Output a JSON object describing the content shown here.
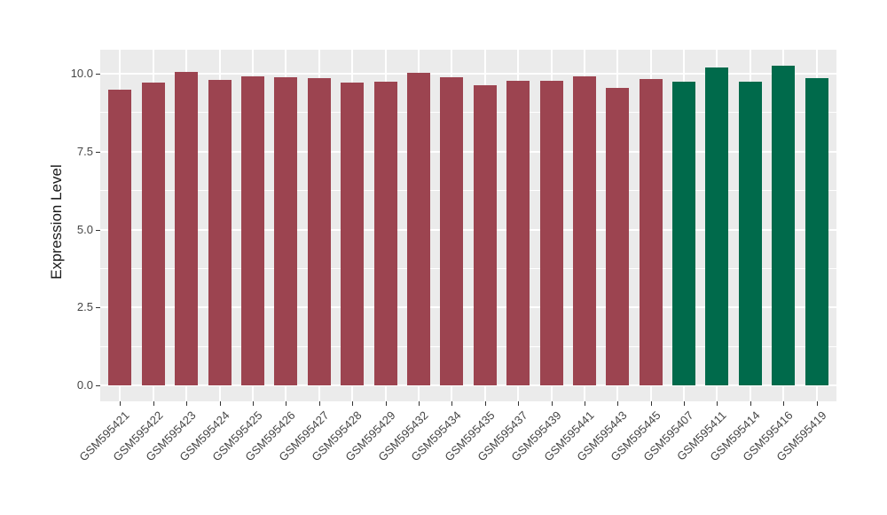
{
  "chart_data": {
    "type": "bar",
    "title": "",
    "xlabel": "",
    "ylabel": "Expression Level",
    "ytick_labels": [
      "0.0",
      "2.5",
      "5.0",
      "7.5",
      "10.0"
    ],
    "yticks": [
      0,
      2.5,
      5,
      7.5,
      10
    ],
    "yticks_minor": [
      1.25,
      3.75,
      6.25,
      8.75
    ],
    "ylim": [
      -0.51,
      10.77
    ],
    "grid": true,
    "legend_position": "none",
    "categories": [
      "GSM595421",
      "GSM595422",
      "GSM595423",
      "GSM595424",
      "GSM595425",
      "GSM595426",
      "GSM595427",
      "GSM595428",
      "GSM595429",
      "GSM595432",
      "GSM595434",
      "GSM595435",
      "GSM595437",
      "GSM595439",
      "GSM595441",
      "GSM595443",
      "GSM595445",
      "GSM595407",
      "GSM595411",
      "GSM595414",
      "GSM595416",
      "GSM595419"
    ],
    "values": [
      9.49,
      9.72,
      10.05,
      9.8,
      9.92,
      9.89,
      9.86,
      9.72,
      9.75,
      10.03,
      9.88,
      9.63,
      9.78,
      9.78,
      9.91,
      9.55,
      9.82,
      9.75,
      10.2,
      9.74,
      10.27,
      9.85
    ],
    "bars": [
      {
        "label": "GSM595421",
        "value": 9.49,
        "group": "group1"
      },
      {
        "label": "GSM595422",
        "value": 9.72,
        "group": "group1"
      },
      {
        "label": "GSM595423",
        "value": 10.05,
        "group": "group1"
      },
      {
        "label": "GSM595424",
        "value": 9.8,
        "group": "group1"
      },
      {
        "label": "GSM595425",
        "value": 9.92,
        "group": "group1"
      },
      {
        "label": "GSM595426",
        "value": 9.89,
        "group": "group1"
      },
      {
        "label": "GSM595427",
        "value": 9.86,
        "group": "group1"
      },
      {
        "label": "GSM595428",
        "value": 9.72,
        "group": "group1"
      },
      {
        "label": "GSM595429",
        "value": 9.75,
        "group": "group1"
      },
      {
        "label": "GSM595432",
        "value": 10.03,
        "group": "group1"
      },
      {
        "label": "GSM595434",
        "value": 9.88,
        "group": "group1"
      },
      {
        "label": "GSM595435",
        "value": 9.63,
        "group": "group1"
      },
      {
        "label": "GSM595437",
        "value": 9.78,
        "group": "group1"
      },
      {
        "label": "GSM595439",
        "value": 9.78,
        "group": "group1"
      },
      {
        "label": "GSM595441",
        "value": 9.91,
        "group": "group1"
      },
      {
        "label": "GSM595443",
        "value": 9.55,
        "group": "group1"
      },
      {
        "label": "GSM595445",
        "value": 9.82,
        "group": "group1"
      },
      {
        "label": "GSM595407",
        "value": 9.75,
        "group": "group2"
      },
      {
        "label": "GSM595411",
        "value": 10.2,
        "group": "group2"
      },
      {
        "label": "GSM595414",
        "value": 9.74,
        "group": "group2"
      },
      {
        "label": "GSM595416",
        "value": 10.27,
        "group": "group2"
      },
      {
        "label": "GSM595419",
        "value": 9.85,
        "group": "group2"
      }
    ],
    "group_colors": {
      "group1": "#9C4450",
      "group2": "#006A4B"
    }
  },
  "colors": {
    "figure_bg": "#FFFFFF",
    "panel_bg": "#EBEBEB",
    "gridline": "#FFFFFF",
    "axis_text": "#454545",
    "axis_title": "#1A1A1A",
    "tick_mark": "#333333"
  }
}
